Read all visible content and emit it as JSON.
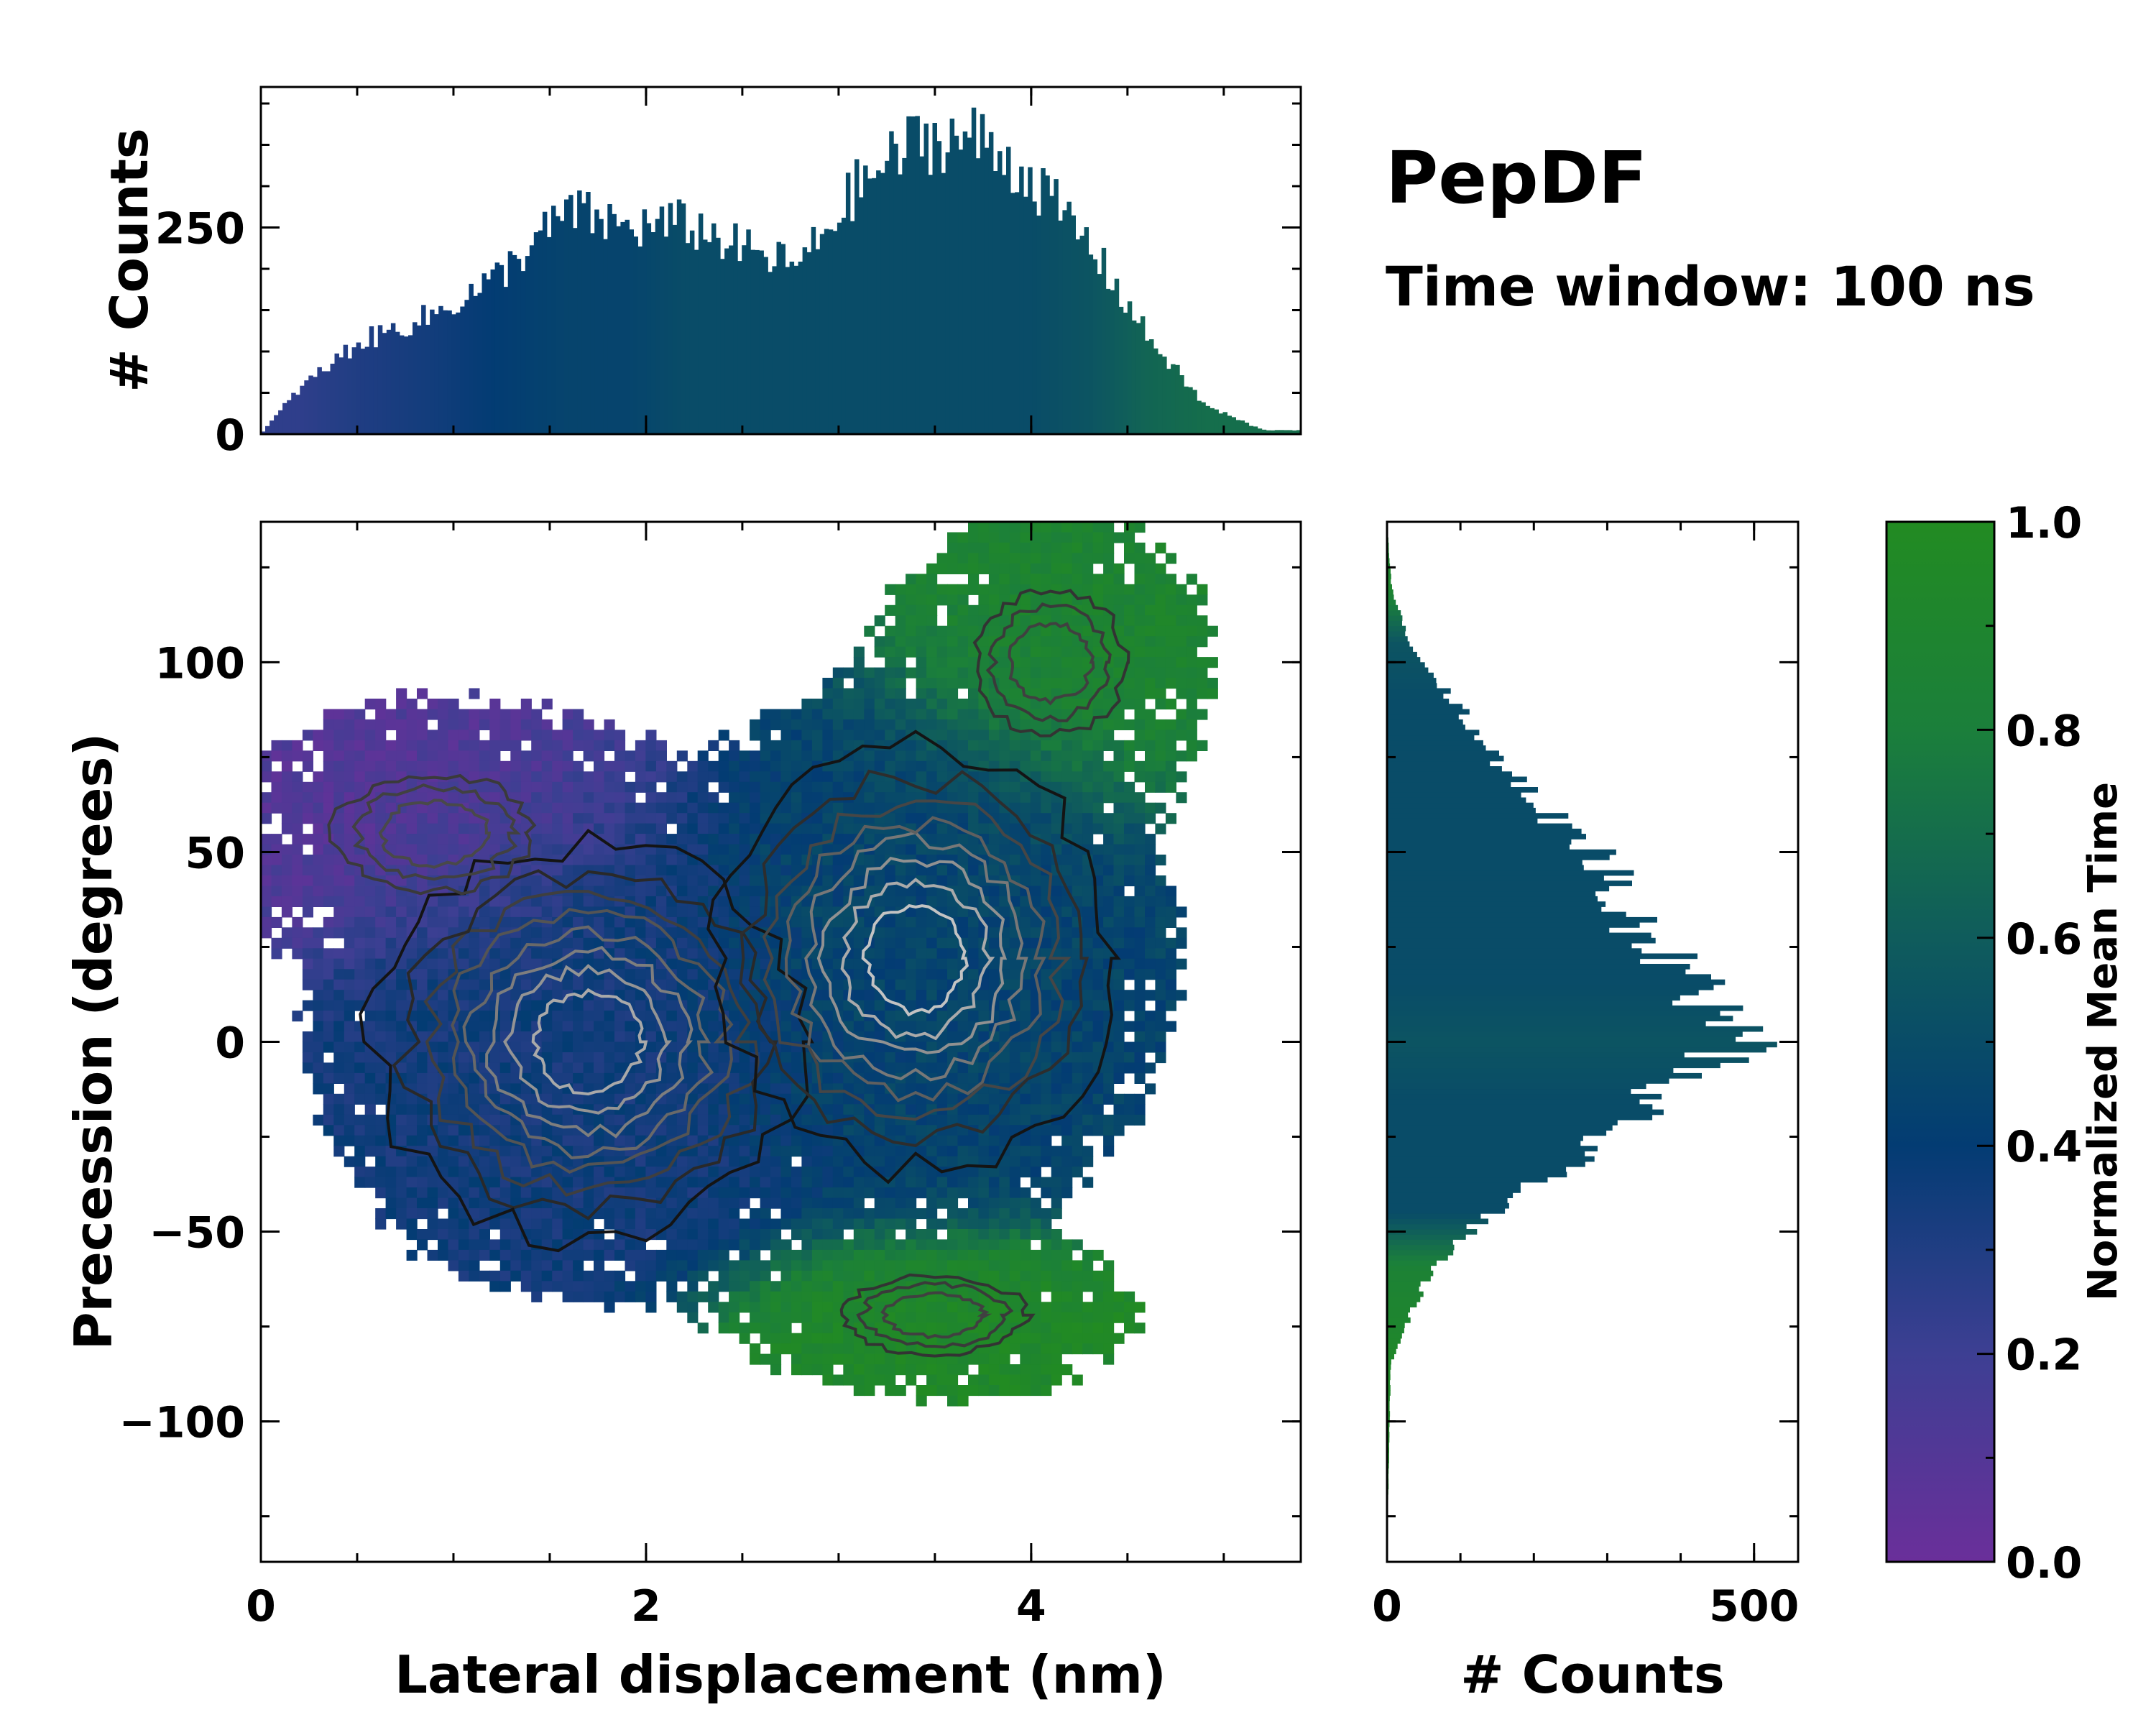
{
  "title": "PepDF",
  "subtitle": "Time window: 100 ns",
  "colormap": {
    "stops": [
      "#6a2f9a",
      "#3d3f93",
      "#033c73",
      "#0f5c5c",
      "#1b7f3b",
      "#228b22"
    ],
    "label": "Normalized Mean Time",
    "ticks": [
      "0.0",
      "0.2",
      "0.4",
      "0.6",
      "0.8",
      "1.0"
    ],
    "tick_values": [
      0,
      0.2,
      0.4,
      0.6,
      0.8,
      1.0
    ]
  },
  "chart_data": [
    {
      "type": "heatmap",
      "name": "joint-distribution",
      "xlabel": "Lateral displacement (nm)",
      "ylabel": "Precession (degrees)",
      "xlim": [
        0,
        5.4
      ],
      "ylim": [
        -137,
        137
      ],
      "xticks": [
        0,
        2,
        4
      ],
      "xtick_labels": [
        "0",
        "2",
        "4"
      ],
      "yticks": [
        -100,
        -50,
        0,
        50,
        100
      ],
      "ytick_labels": [
        "−100",
        "−50",
        "0",
        "50",
        "100"
      ],
      "modes": [
        {
          "x": 1.7,
          "y": 0,
          "sx": 0.6,
          "sy": 28,
          "weight": 0.85,
          "time": 0.35
        },
        {
          "x": 3.4,
          "y": 22,
          "sx": 0.55,
          "sy": 30,
          "weight": 1.0,
          "time": 0.45
        },
        {
          "x": 4.1,
          "y": 100,
          "sx": 0.45,
          "sy": 22,
          "weight": 0.25,
          "time": 0.88
        },
        {
          "x": 3.5,
          "y": -72,
          "sx": 0.55,
          "sy": 12,
          "weight": 0.25,
          "time": 0.95
        },
        {
          "x": 0.9,
          "y": 55,
          "sx": 0.6,
          "sy": 18,
          "weight": 0.3,
          "time": 0.1
        }
      ],
      "contour_levels": 8
    },
    {
      "type": "bar",
      "name": "top-marginal",
      "ylabel": "# Counts",
      "xlim": [
        0,
        5.4
      ],
      "ylim": [
        0,
        420
      ],
      "yticks": [
        0,
        250
      ],
      "ytick_labels": [
        "0",
        "250"
      ],
      "profile_x": [
        0.0,
        0.2,
        0.5,
        0.9,
        1.2,
        1.6,
        1.9,
        2.2,
        2.6,
        2.8,
        3.1,
        3.4,
        3.7,
        4.0,
        4.3,
        4.6,
        4.9,
        5.2
      ],
      "profile_counts": [
        0,
        55,
        110,
        145,
        185,
        270,
        250,
        255,
        215,
        205,
        300,
        355,
        360,
        310,
        230,
        120,
        35,
        5
      ],
      "profile_time": [
        0.25,
        0.25,
        0.3,
        0.35,
        0.4,
        0.45,
        0.45,
        0.5,
        0.5,
        0.5,
        0.5,
        0.5,
        0.5,
        0.5,
        0.55,
        0.65,
        0.7,
        0.7
      ]
    },
    {
      "type": "bar",
      "name": "right-marginal",
      "xlabel": "# Counts",
      "xlim": [
        0,
        560
      ],
      "xticks": [
        0,
        500
      ],
      "xtick_labels": [
        "0",
        "500"
      ],
      "ylim": [
        -137,
        137
      ],
      "profile_y": [
        -137,
        -85,
        -75,
        -60,
        -45,
        -30,
        -15,
        0,
        15,
        30,
        45,
        60,
        75,
        90,
        105,
        120,
        137
      ],
      "profile_counts": [
        0,
        5,
        25,
        60,
        140,
        260,
        360,
        480,
        420,
        340,
        310,
        220,
        150,
        90,
        30,
        6,
        0
      ],
      "profile_time": [
        0.95,
        0.95,
        0.9,
        0.85,
        0.5,
        0.5,
        0.5,
        0.55,
        0.5,
        0.5,
        0.5,
        0.5,
        0.5,
        0.5,
        0.55,
        0.9,
        0.9
      ]
    }
  ]
}
